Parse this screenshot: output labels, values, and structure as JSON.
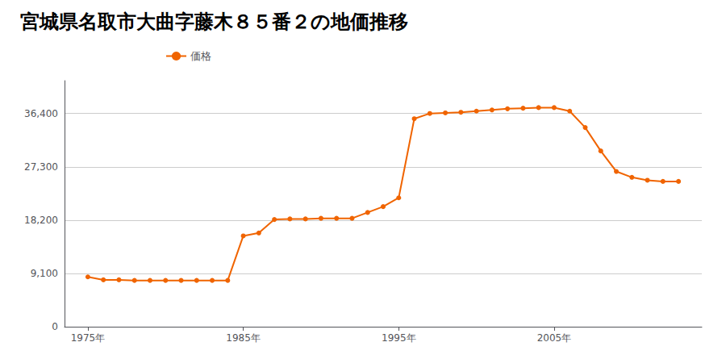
{
  "chart_data": {
    "type": "line",
    "title": "宮城県名取市大曲字藤木８５番２の地価推移",
    "x": [
      1975,
      1976,
      1977,
      1978,
      1979,
      1980,
      1981,
      1982,
      1983,
      1984,
      1985,
      1986,
      1987,
      1988,
      1989,
      1990,
      1991,
      1992,
      1993,
      1994,
      1995,
      1996,
      1997,
      1998,
      1999,
      2000,
      2001,
      2002,
      2003,
      2004,
      2005,
      2006,
      2007,
      2008,
      2009,
      2010,
      2011,
      2012,
      2013
    ],
    "series": [
      {
        "name": "価格",
        "color": "#f06400",
        "marker": "circle",
        "values": [
          8500,
          8000,
          8000,
          7900,
          7900,
          7900,
          7900,
          7900,
          7900,
          7900,
          15500,
          16000,
          18300,
          18400,
          18400,
          18500,
          18500,
          18500,
          19500,
          20500,
          22000,
          35500,
          36400,
          36500,
          36600,
          36800,
          37000,
          37200,
          37300,
          37400,
          37400,
          36800,
          34000,
          30000,
          26500,
          25500,
          25000,
          24800,
          24800
        ]
      }
    ],
    "xlim": [
      1973.5,
      2014.5
    ],
    "xticks": [
      {
        "value": 1975,
        "label": "1975年"
      },
      {
        "value": 1985,
        "label": "1985年"
      },
      {
        "value": 1995,
        "label": "1995年"
      },
      {
        "value": 2005,
        "label": "2005年"
      }
    ],
    "ylim": [
      0,
      42000
    ],
    "yticks": [
      0,
      {
        "value": 9100,
        "label": "9,100"
      },
      {
        "value": 18200,
        "label": "18,200"
      },
      {
        "value": 27300,
        "label": "27,300"
      },
      {
        "value": 36400,
        "label": "36,400"
      }
    ],
    "grid": "y",
    "legend": "upper left"
  }
}
